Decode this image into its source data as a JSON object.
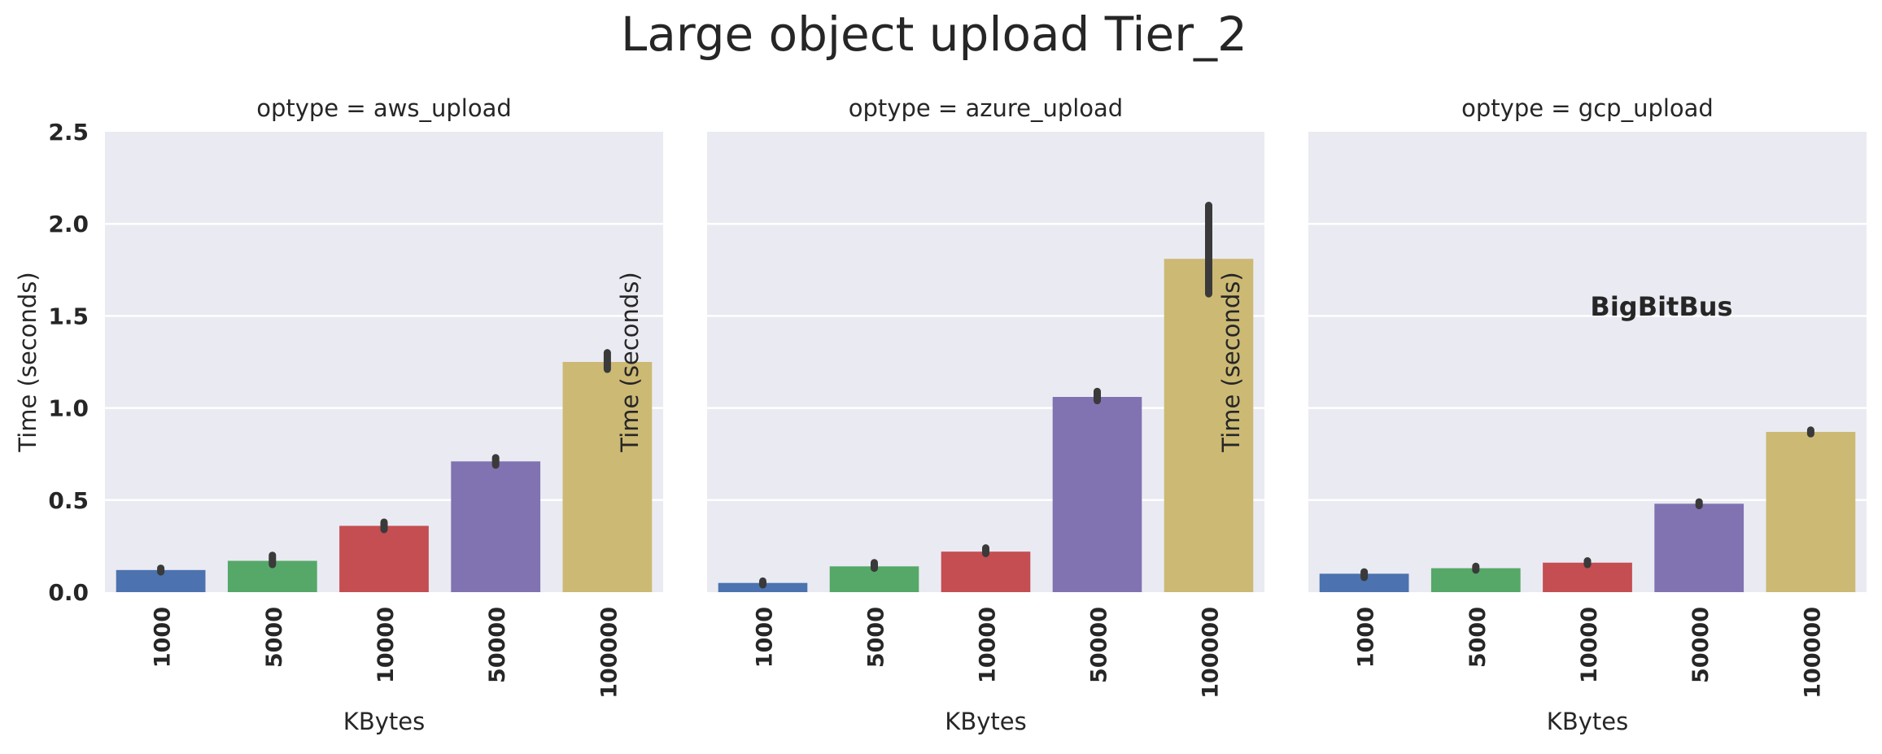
{
  "title": "Large object upload Tier_2",
  "watermark": "BigBitBus",
  "colors": {
    "background": "#eaeaf2",
    "grid": "#ffffff",
    "text": "#262626",
    "errorbar": "#3a3a3a",
    "bars": [
      "#4c72b0",
      "#55a868",
      "#c44e52",
      "#8172b2",
      "#ccb974"
    ]
  },
  "chart_data": [
    {
      "type": "bar",
      "title": "optype = aws_upload",
      "xlabel": "KBytes",
      "ylabel": "Time (seconds)",
      "categories": [
        "1000",
        "5000",
        "10000",
        "50000",
        "100000"
      ],
      "values": [
        0.12,
        0.17,
        0.36,
        0.71,
        1.25
      ],
      "ci_low": [
        0.11,
        0.15,
        0.34,
        0.69,
        1.21
      ],
      "ci_high": [
        0.13,
        0.2,
        0.38,
        0.73,
        1.3
      ],
      "ylim": [
        0,
        2.5
      ],
      "yticks": [
        "0.0",
        "0.5",
        "1.0",
        "1.5",
        "2.0",
        "2.5"
      ],
      "grid": true
    },
    {
      "type": "bar",
      "title": "optype = azure_upload",
      "xlabel": "KBytes",
      "ylabel": "Time (seconds)",
      "categories": [
        "1000",
        "5000",
        "10000",
        "50000",
        "100000"
      ],
      "values": [
        0.05,
        0.14,
        0.22,
        1.06,
        1.81
      ],
      "ci_low": [
        0.04,
        0.13,
        0.21,
        1.04,
        1.62
      ],
      "ci_high": [
        0.06,
        0.16,
        0.24,
        1.09,
        2.1
      ],
      "ylim": [
        0,
        2.5
      ],
      "grid": true
    },
    {
      "type": "bar",
      "title": "optype = gcp_upload",
      "xlabel": "KBytes",
      "ylabel": "Time (seconds)",
      "categories": [
        "1000",
        "5000",
        "10000",
        "50000",
        "100000"
      ],
      "values": [
        0.1,
        0.13,
        0.16,
        0.48,
        0.87
      ],
      "ci_low": [
        0.08,
        0.12,
        0.15,
        0.47,
        0.86
      ],
      "ci_high": [
        0.11,
        0.14,
        0.17,
        0.49,
        0.88
      ],
      "ylim": [
        0,
        2.5
      ],
      "grid": true
    }
  ]
}
